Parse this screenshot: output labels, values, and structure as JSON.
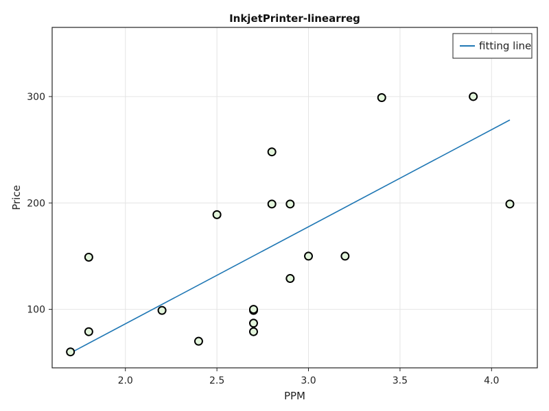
{
  "chart_data": {
    "type": "scatter",
    "title": "InkjetPrinter-linearreg",
    "xlabel": "PPM",
    "ylabel": "Price",
    "xlim": [
      1.6,
      4.25
    ],
    "ylim": [
      45,
      365
    ],
    "xticks": [
      2.0,
      2.5,
      3.0,
      3.5,
      4.0
    ],
    "xtick_labels": [
      "2.0",
      "2.5",
      "3.0",
      "3.5",
      "4.0"
    ],
    "yticks": [
      100,
      200,
      300
    ],
    "ytick_labels": [
      "100",
      "200",
      "300"
    ],
    "grid": true,
    "legend_position": "top-right",
    "series": [
      {
        "kind": "scatter",
        "color": "#e3f5dc",
        "edge_color": "#000000",
        "points": [
          {
            "x": 1.7,
            "y": 60
          },
          {
            "x": 1.8,
            "y": 79
          },
          {
            "x": 1.8,
            "y": 149
          },
          {
            "x": 2.2,
            "y": 99
          },
          {
            "x": 2.4,
            "y": 70
          },
          {
            "x": 2.5,
            "y": 189
          },
          {
            "x": 2.7,
            "y": 79
          },
          {
            "x": 2.7,
            "y": 87
          },
          {
            "x": 2.7,
            "y": 99
          },
          {
            "x": 2.7,
            "y": 100
          },
          {
            "x": 2.8,
            "y": 199
          },
          {
            "x": 2.8,
            "y": 248
          },
          {
            "x": 2.9,
            "y": 129
          },
          {
            "x": 2.9,
            "y": 199
          },
          {
            "x": 3.0,
            "y": 150
          },
          {
            "x": 3.2,
            "y": 150
          },
          {
            "x": 3.4,
            "y": 299
          },
          {
            "x": 3.9,
            "y": 300
          },
          {
            "x": 4.1,
            "y": 199
          }
        ]
      },
      {
        "kind": "line",
        "name": "fitting line",
        "color": "#1f77b4",
        "points": [
          {
            "x": 1.7,
            "y": 59
          },
          {
            "x": 4.1,
            "y": 278
          }
        ]
      }
    ]
  }
}
